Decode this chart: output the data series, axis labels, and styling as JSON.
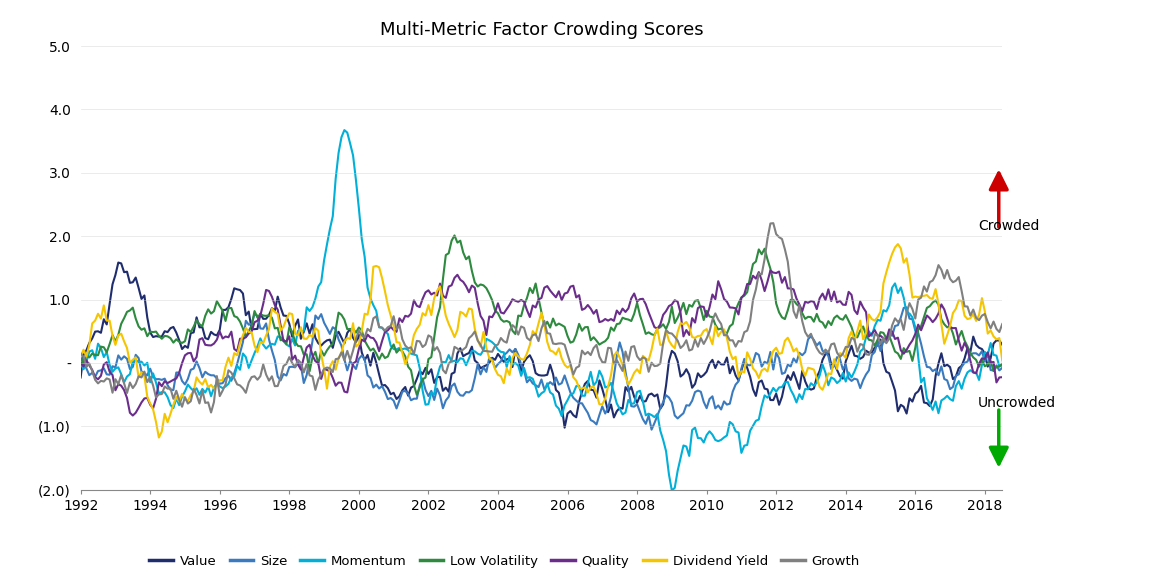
{
  "title": "Multi-Metric Factor Crowding Scores",
  "title_fontsize": 13,
  "ylim": [
    -2.0,
    5.0
  ],
  "xlim": [
    1992,
    2018.5
  ],
  "yticks": [
    -2.0,
    -1.0,
    0.0,
    1.0,
    2.0,
    3.0,
    4.0,
    5.0
  ],
  "ytick_labels": [
    "(2.0)",
    "(1.0)",
    "-",
    "1.0",
    "2.0",
    "3.0",
    "4.0",
    "5.0"
  ],
  "xticks": [
    1992,
    1994,
    1996,
    1998,
    2000,
    2002,
    2004,
    2006,
    2008,
    2010,
    2012,
    2014,
    2016,
    2018
  ],
  "colors": {
    "Value": "#1f2d6e",
    "Size": "#3a7abf",
    "Momentum": "#00b0d8",
    "Low Volatility": "#2d8a3e",
    "Quality": "#6b2d8b",
    "Dividend Yield": "#f5c500",
    "Growth": "#808080"
  },
  "legend_labels": [
    "Value",
    "Size",
    "Momentum",
    "Low Volatility",
    "Quality",
    "Dividend Yield",
    "Growth"
  ],
  "crowded_text": "Crowded",
  "uncrowded_text": "Uncrowded",
  "crowded_color": "#cc0000",
  "uncrowded_color": "#00aa00",
  "line_width": 1.5,
  "background_color": "#ffffff",
  "grid_color": "#d0d0d0",
  "grid_alpha": 0.6
}
